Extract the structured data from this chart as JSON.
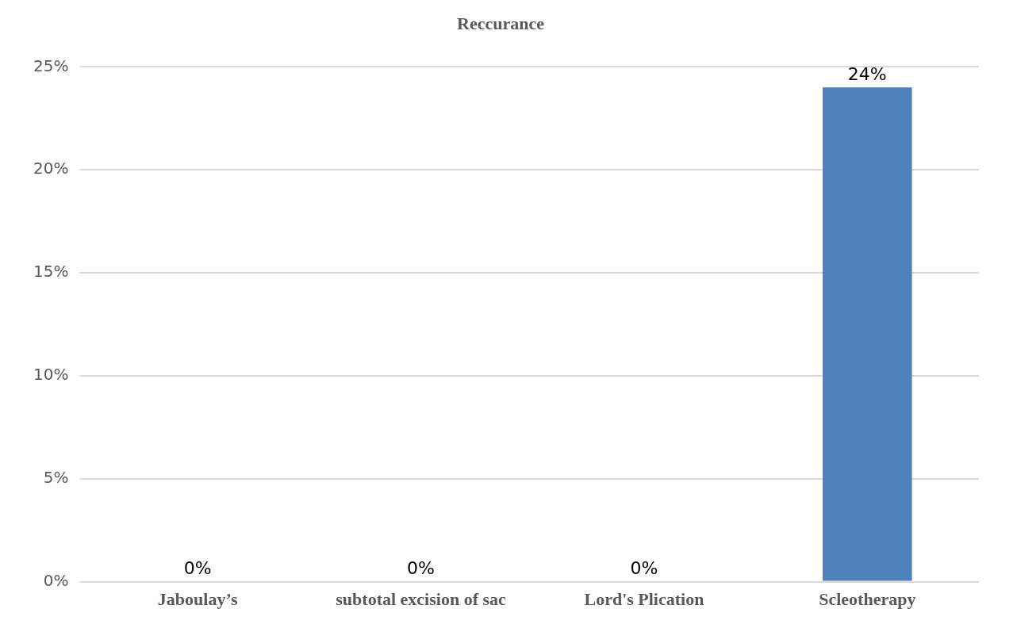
{
  "chart_data": {
    "type": "bar",
    "title": "Reccurance",
    "categories": [
      "Jaboulay’s",
      "subtotal excision of sac",
      "Lord's Plication",
      "Scleotherapy"
    ],
    "values": [
      0,
      0,
      0,
      24
    ],
    "color": "#4f81bd",
    "value_labels": [
      "0%",
      "0%",
      "0%",
      "24%"
    ],
    "ylim": [
      0,
      25
    ],
    "yticks": [
      {
        "value": 0,
        "label": "0%"
      },
      {
        "value": 5,
        "label": "5%"
      },
      {
        "value": 10,
        "label": "10%"
      },
      {
        "value": 15,
        "label": "15%"
      },
      {
        "value": 20,
        "label": "20%"
      },
      {
        "value": 25,
        "label": "25%"
      }
    ],
    "grid": "y",
    "legend": false
  }
}
